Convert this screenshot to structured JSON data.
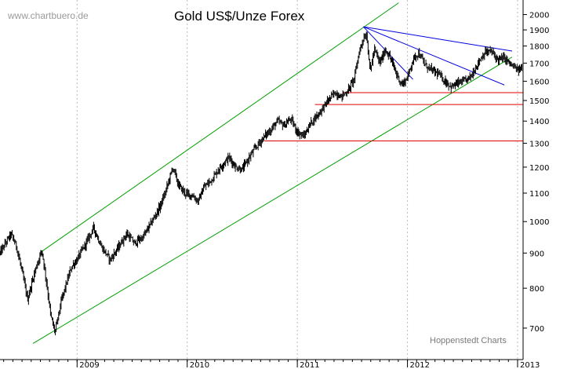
{
  "watermark": "www.chartbuero.de",
  "source_note": "Hoppenstedt Charts",
  "chart_data": {
    "type": "candlestick",
    "title": "Gold US$/Unze Forex",
    "xlabel": "",
    "ylabel": "",
    "x_range": [
      2008.3,
      2013.05
    ],
    "y_scale": "log",
    "ylim": [
      630,
      2100
    ],
    "yticks": [
      700,
      800,
      900,
      1000,
      1100,
      1200,
      1300,
      1400,
      1500,
      1600,
      1700,
      1800,
      1900,
      2000
    ],
    "xticks": [
      {
        "label": "2009",
        "x": 2009.0
      },
      {
        "label": "2010",
        "x": 2010.0
      },
      {
        "label": "2011",
        "x": 2011.0
      },
      {
        "label": "2012",
        "x": 2012.0
      },
      {
        "label": "2013",
        "x": 2013.0
      }
    ],
    "grid": {
      "vertical": true,
      "horizontal": false
    },
    "colors": {
      "price": "#000000",
      "channel": "#00a000",
      "support": "#e00000",
      "trend": "#0000dd",
      "grid": "#bbbbbb"
    },
    "price_path": [
      [
        2008.3,
        900
      ],
      [
        2008.4,
        960
      ],
      [
        2008.45,
        920
      ],
      [
        2008.55,
        770
      ],
      [
        2008.62,
        850
      ],
      [
        2008.68,
        910
      ],
      [
        2008.76,
        730
      ],
      [
        2008.8,
        690
      ],
      [
        2008.86,
        770
      ],
      [
        2008.95,
        860
      ],
      [
        2009.0,
        880
      ],
      [
        2009.08,
        930
      ],
      [
        2009.15,
        980
      ],
      [
        2009.22,
        920
      ],
      [
        2009.3,
        880
      ],
      [
        2009.38,
        920
      ],
      [
        2009.45,
        960
      ],
      [
        2009.52,
        930
      ],
      [
        2009.6,
        950
      ],
      [
        2009.68,
        1000
      ],
      [
        2009.75,
        1050
      ],
      [
        2009.8,
        1100
      ],
      [
        2009.87,
        1200
      ],
      [
        2009.92,
        1130
      ],
      [
        2009.98,
        1100
      ],
      [
        2010.05,
        1090
      ],
      [
        2010.1,
        1070
      ],
      [
        2010.15,
        1120
      ],
      [
        2010.22,
        1150
      ],
      [
        2010.3,
        1200
      ],
      [
        2010.38,
        1240
      ],
      [
        2010.44,
        1200
      ],
      [
        2010.5,
        1190
      ],
      [
        2010.55,
        1230
      ],
      [
        2010.62,
        1280
      ],
      [
        2010.7,
        1330
      ],
      [
        2010.76,
        1360
      ],
      [
        2010.82,
        1400
      ],
      [
        2010.88,
        1380
      ],
      [
        2010.94,
        1410
      ],
      [
        2011.0,
        1350
      ],
      [
        2011.06,
        1330
      ],
      [
        2011.12,
        1390
      ],
      [
        2011.2,
        1440
      ],
      [
        2011.28,
        1500
      ],
      [
        2011.34,
        1540
      ],
      [
        2011.4,
        1520
      ],
      [
        2011.46,
        1550
      ],
      [
        2011.52,
        1620
      ],
      [
        2011.56,
        1760
      ],
      [
        2011.6,
        1850
      ],
      [
        2011.63,
        1870
      ],
      [
        2011.66,
        1650
      ],
      [
        2011.7,
        1780
      ],
      [
        2011.75,
        1700
      ],
      [
        2011.8,
        1780
      ],
      [
        2011.85,
        1720
      ],
      [
        2011.9,
        1640
      ],
      [
        2011.95,
        1580
      ],
      [
        2012.0,
        1620
      ],
      [
        2012.05,
        1720
      ],
      [
        2012.1,
        1760
      ],
      [
        2012.16,
        1690
      ],
      [
        2012.22,
        1660
      ],
      [
        2012.28,
        1640
      ],
      [
        2012.34,
        1600
      ],
      [
        2012.4,
        1570
      ],
      [
        2012.46,
        1590
      ],
      [
        2012.52,
        1600
      ],
      [
        2012.58,
        1630
      ],
      [
        2012.64,
        1700
      ],
      [
        2012.7,
        1760
      ],
      [
        2012.76,
        1770
      ],
      [
        2012.82,
        1720
      ],
      [
        2012.88,
        1730
      ],
      [
        2012.94,
        1690
      ],
      [
        2013.0,
        1660
      ],
      [
        2013.04,
        1670
      ]
    ],
    "lines": [
      {
        "name": "channel-upper",
        "kind": "channel",
        "from": [
          2008.68,
          905
        ],
        "to": [
          2011.92,
          2080
        ]
      },
      {
        "name": "channel-lower",
        "kind": "channel",
        "from": [
          2008.6,
          665
        ],
        "to": [
          2012.95,
          1735
        ]
      },
      {
        "name": "support-1540",
        "kind": "support",
        "from": [
          2011.42,
          1540
        ],
        "to": [
          2013.05,
          1540
        ]
      },
      {
        "name": "support-1480",
        "kind": "support",
        "from": [
          2011.16,
          1480
        ],
        "to": [
          2013.05,
          1480
        ]
      },
      {
        "name": "support-1310",
        "kind": "support",
        "from": [
          2010.7,
          1310
        ],
        "to": [
          2013.05,
          1310
        ]
      },
      {
        "name": "trend-1",
        "kind": "trend",
        "from": [
          2011.6,
          1920
        ],
        "to": [
          2012.95,
          1770
        ]
      },
      {
        "name": "trend-2",
        "kind": "trend",
        "from": [
          2011.6,
          1920
        ],
        "to": [
          2012.88,
          1580
        ]
      },
      {
        "name": "trend-3",
        "kind": "trend",
        "from": [
          2011.6,
          1920
        ],
        "to": [
          2012.05,
          1610
        ]
      }
    ]
  }
}
